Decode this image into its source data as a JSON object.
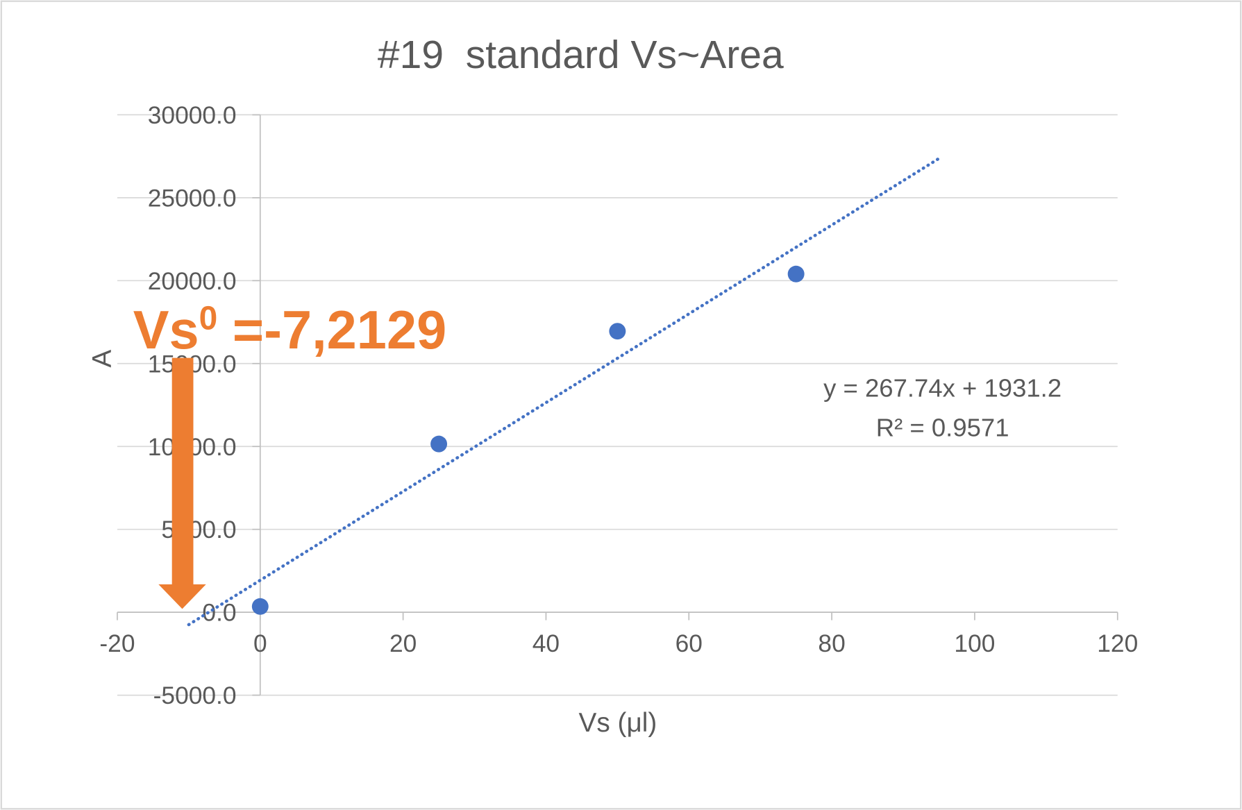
{
  "chart_data": {
    "type": "scatter",
    "title": "#19  standard Vs~Area",
    "xlabel": "Vs (μl)",
    "ylabel": "A",
    "xlim": [
      -20,
      120
    ],
    "ylim": [
      -5000,
      30000
    ],
    "x_ticks": [
      -20,
      0,
      20,
      40,
      60,
      80,
      100,
      120
    ],
    "x_tick_labels": [
      "-20",
      "0",
      "20",
      "40",
      "60",
      "80",
      "100",
      "120"
    ],
    "y_ticks": [
      -5000,
      0,
      5000,
      10000,
      15000,
      20000,
      25000,
      30000
    ],
    "y_tick_labels": [
      "-5000.0",
      "0.0",
      "5000.0",
      "10000.0",
      "15000.0",
      "20000.0",
      "25000.0",
      "30000.0"
    ],
    "grid": "horizontal",
    "legend": "none",
    "series": [
      {
        "x": [
          0,
          25,
          50,
          75
        ],
        "y": [
          350,
          10150,
          16950,
          20400
        ]
      }
    ],
    "trendline": {
      "type": "linear",
      "style": "dotted",
      "slope": 267.74,
      "intercept": 1931.2,
      "x_range": [
        -10,
        95
      ],
      "equation": "y = 267.74x + 1931.2",
      "r_squared": "R² = 0.9571"
    },
    "colors": {
      "points": "#4472C4",
      "trendline": "#4472C4",
      "gridlines": "#D9D9D9",
      "axis": "#BFBFBF",
      "text": "#595959",
      "border": "#D9D9D9"
    }
  },
  "annotation": {
    "base": "Vs",
    "superscript": "0",
    "rest": " =-7,2129",
    "color": "#ED7D31",
    "icon": "down-arrow-icon"
  }
}
